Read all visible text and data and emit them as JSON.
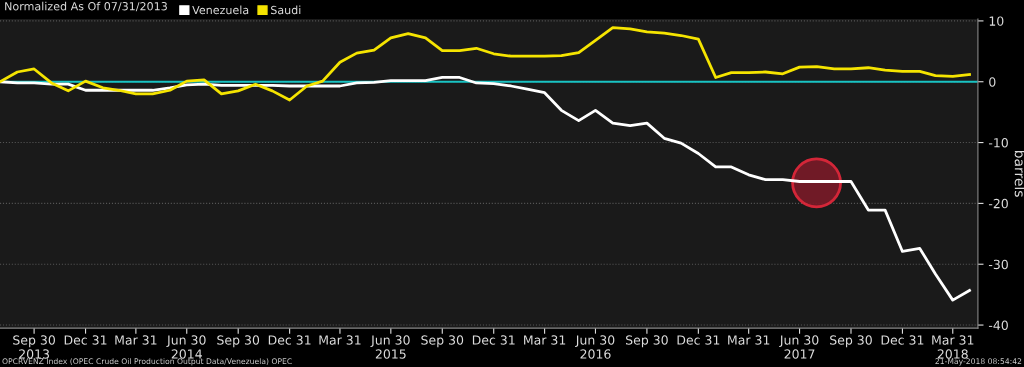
{
  "chart_data": {
    "type": "line",
    "title": "Normalized As Of 07/31/2013",
    "ylabel": "barrels",
    "x": [
      "2013-07-31",
      "2013-08-31",
      "2013-09-30",
      "2013-10-31",
      "2013-11-30",
      "2013-12-31",
      "2014-01-31",
      "2014-02-28",
      "2014-03-31",
      "2014-04-30",
      "2014-05-31",
      "2014-06-30",
      "2014-07-31",
      "2014-08-31",
      "2014-09-30",
      "2014-10-31",
      "2014-11-30",
      "2014-12-31",
      "2015-01-31",
      "2015-02-28",
      "2015-03-31",
      "2015-04-30",
      "2015-05-31",
      "2015-06-30",
      "2015-07-31",
      "2015-08-31",
      "2015-09-30",
      "2015-10-31",
      "2015-11-30",
      "2015-12-31",
      "2016-01-31",
      "2016-02-29",
      "2016-03-31",
      "2016-04-30",
      "2016-05-31",
      "2016-06-30",
      "2016-07-31",
      "2016-08-31",
      "2016-09-30",
      "2016-10-31",
      "2016-11-30",
      "2016-12-31",
      "2017-01-31",
      "2017-02-28",
      "2017-03-31",
      "2017-04-30",
      "2017-05-31",
      "2017-06-30",
      "2017-07-31",
      "2017-08-31",
      "2017-09-30",
      "2017-10-31",
      "2017-11-30",
      "2017-12-31",
      "2018-01-31",
      "2018-02-28",
      "2018-03-31",
      "2018-04-30"
    ],
    "series": [
      {
        "name": "Venezuela",
        "color": "#ffffff",
        "values": [
          0,
          -0.2,
          -0.2,
          -0.4,
          -0.4,
          -1.4,
          -1.4,
          -1.4,
          -1.4,
          -1.4,
          -1.0,
          -0.5,
          -0.4,
          -0.6,
          -0.6,
          -0.6,
          -0.6,
          -0.7,
          -0.7,
          -0.7,
          -0.7,
          -0.2,
          -0.1,
          0.2,
          0.2,
          0.2,
          0.7,
          0.7,
          -0.2,
          -0.3,
          -0.7,
          -1.2,
          -1.8,
          -4.7,
          -6.4,
          -4.7,
          -6.8,
          -7.2,
          -6.8,
          -9.3,
          -10.1,
          -11.8,
          -14.0,
          -14.0,
          -15.3,
          -16.1,
          -16.1,
          -16.4,
          -16.4,
          -16.4,
          -16.4,
          -21.1,
          -21.1,
          -27.9,
          -27.4,
          -31.6,
          -35.9,
          -34.3
        ]
      },
      {
        "name": "Saudi",
        "color": "#f5e400",
        "values": [
          0,
          1.6,
          2.1,
          -0.2,
          -1.5,
          0.1,
          -1.0,
          -1.4,
          -2.0,
          -2.0,
          -1.4,
          0.1,
          0.3,
          -2.0,
          -1.5,
          -0.4,
          -1.5,
          -3.0,
          -0.7,
          0.1,
          3.2,
          4.7,
          5.2,
          7.2,
          7.9,
          7.2,
          5.1,
          5.1,
          5.5,
          4.6,
          4.2,
          4.2,
          4.2,
          4.3,
          4.8,
          6.8,
          8.9,
          8.7,
          8.2,
          8.0,
          7.6,
          7.0,
          0.7,
          1.5,
          1.5,
          1.6,
          1.3,
          2.4,
          2.5,
          2.1,
          2.1,
          2.3,
          1.9,
          1.7,
          1.7,
          1.0,
          0.9,
          1.2
        ]
      }
    ],
    "xlim": [
      "2013-07-31",
      "2018-05-15"
    ],
    "xticks": [
      {
        "value": "2013-09-30",
        "label": "Sep 30\n2013"
      },
      {
        "value": "2013-12-31",
        "label": "Dec 31"
      },
      {
        "value": "2014-03-31",
        "label": "Mar 31"
      },
      {
        "value": "2014-06-30",
        "label": "Jun 30\n2014"
      },
      {
        "value": "2014-09-30",
        "label": "Sep 30"
      },
      {
        "value": "2014-12-31",
        "label": "Dec 31"
      },
      {
        "value": "2015-03-31",
        "label": "Mar 31"
      },
      {
        "value": "2015-06-30",
        "label": "Jun 30\n2015"
      },
      {
        "value": "2015-09-30",
        "label": "Sep 30"
      },
      {
        "value": "2015-12-31",
        "label": "Dec 31"
      },
      {
        "value": "2016-03-31",
        "label": "Mar 31"
      },
      {
        "value": "2016-06-30",
        "label": "Jun 30\n2016"
      },
      {
        "value": "2016-09-30",
        "label": "Sep 30"
      },
      {
        "value": "2016-12-31",
        "label": "Dec 31"
      },
      {
        "value": "2017-03-31",
        "label": "Mar 31"
      },
      {
        "value": "2017-06-30",
        "label": "Jun 30\n2017"
      },
      {
        "value": "2017-09-30",
        "label": "Sep 30"
      },
      {
        "value": "2017-12-31",
        "label": "Dec 31"
      },
      {
        "value": "2018-03-31",
        "label": "Mar 31\n2018"
      }
    ],
    "ylim": [
      -40.5,
      10.3
    ],
    "yticks": [
      10,
      0,
      -10,
      -20,
      -30,
      -40
    ],
    "ref_lines": [
      {
        "axis": "y",
        "value": 0,
        "color": "#19c3c3"
      }
    ],
    "grid": "y",
    "legend": "top left",
    "line_style": "solid",
    "annotations": [
      "OPCRVENZ Index (OPEC Crude Oil Production Output Data/Venezuela) OPEC",
      "21-May-2018 08:54:42"
    ]
  }
}
